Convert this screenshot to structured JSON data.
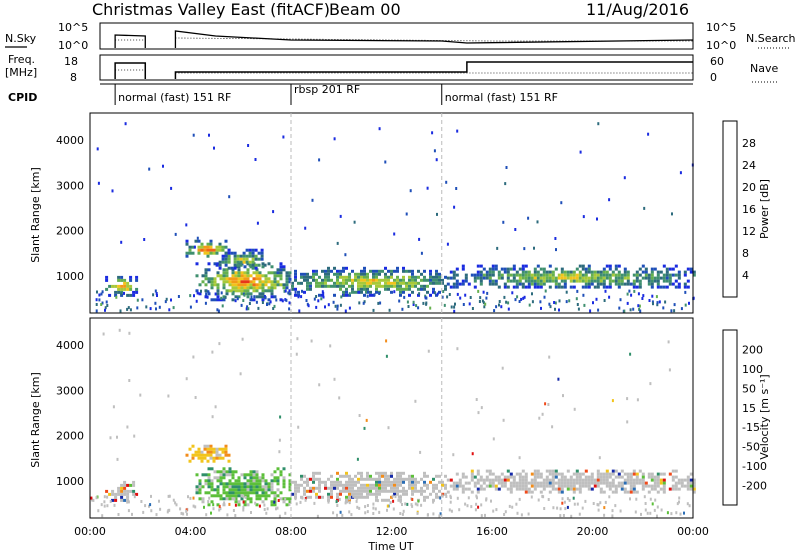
{
  "header": {
    "station": "Christmas Valley East (fitACF)",
    "beam": "Beam 00",
    "date": "11/Aug/2016"
  },
  "status_panels": {
    "left_labels": [
      "N.Sky",
      "Freq.",
      "[MHz]",
      "CPID"
    ],
    "right_labels": [
      "N.Search",
      "Nave"
    ],
    "nsky_ticks": [
      "10^5",
      "10^0"
    ],
    "nsearch_ticks": [
      "10^5",
      "10^0"
    ],
    "freq_ticks": [
      "18",
      "8"
    ],
    "nave_ticks": [
      "60",
      "0"
    ]
  },
  "cpid_segments": [
    {
      "label": "normal (fast) 151 RF",
      "start_hour": 1.0
    },
    {
      "label": "rbsp 201 RF",
      "start_hour": 8.0
    },
    {
      "label": "normal (fast) 151 RF",
      "start_hour": 14.0
    }
  ],
  "chart_data": [
    {
      "type": "heatmap",
      "name": "Power",
      "ylabel": "Slant Range [km]",
      "ylim": [
        180,
        4600
      ],
      "yticks": [
        "1000",
        "2000",
        "3000",
        "4000"
      ],
      "colorbar_label": "Power [dB]",
      "colorbar_ticks": [
        "28",
        "24",
        "20",
        "16",
        "12",
        "8",
        "4"
      ],
      "colors": [
        "#1a2be0",
        "#1f4fb8",
        "#2d6b7d",
        "#3f8f6f",
        "#66b04e",
        "#a7c93a",
        "#f2c41c",
        "#f29a18",
        "#f0651a",
        "#e8351a",
        "#e00f10"
      ],
      "echo_regions": [
        {
          "t0": 0.6,
          "t1": 1.8,
          "r0": 600,
          "r1": 1000,
          "level_db": 24
        },
        {
          "t0": 3.8,
          "t1": 5.5,
          "r0": 1450,
          "r1": 1800,
          "level_db": 26
        },
        {
          "t0": 4.2,
          "t1": 8.0,
          "r0": 500,
          "r1": 1300,
          "level_db": 24
        },
        {
          "t0": 5.0,
          "t1": 7.0,
          "r0": 1150,
          "r1": 1600,
          "level_db": 18
        },
        {
          "t0": 8.0,
          "t1": 14.2,
          "r0": 600,
          "r1": 1200,
          "level_db": 20
        },
        {
          "t0": 14.2,
          "t1": 24.0,
          "r0": 750,
          "r1": 1250,
          "level_db": 18
        }
      ]
    },
    {
      "type": "heatmap",
      "name": "Velocity",
      "ylabel": "Slant Range [km]",
      "xlabel": "Time UT",
      "ylim": [
        180,
        4600
      ],
      "yticks": [
        "1000",
        "2000",
        "3000",
        "4000"
      ],
      "xticks": [
        "00:00",
        "04:00",
        "08:00",
        "12:00",
        "16:00",
        "20:00",
        "00:00"
      ],
      "colorbar_label": "Velocity [m s⁻¹]",
      "colorbar_ticks": [
        "200",
        "100",
        "50",
        "15",
        "-15",
        "-50",
        "-100",
        "-200"
      ],
      "colors": [
        "#1428a8",
        "#2a6db5",
        "#2f8f6a",
        "#5cbf3a",
        "#bfbfbf",
        "#f2c41c",
        "#f28c1a",
        "#f04a1a",
        "#e00f10"
      ],
      "ground_scatter_color": "#bfbfbf",
      "echo_regions": [
        {
          "t0": 0.6,
          "t1": 1.8,
          "r0": 600,
          "r1": 1000,
          "velocity": 0
        },
        {
          "t0": 3.8,
          "t1": 5.5,
          "r0": 1450,
          "r1": 1800,
          "velocity": -40
        },
        {
          "t0": 4.2,
          "t1": 8.0,
          "r0": 500,
          "r1": 1300,
          "velocity": 20
        },
        {
          "t0": 8.0,
          "t1": 14.2,
          "r0": 600,
          "r1": 1200,
          "velocity": 0
        },
        {
          "t0": 14.2,
          "t1": 24.0,
          "r0": 750,
          "r1": 1250,
          "velocity": 0
        }
      ]
    }
  ]
}
